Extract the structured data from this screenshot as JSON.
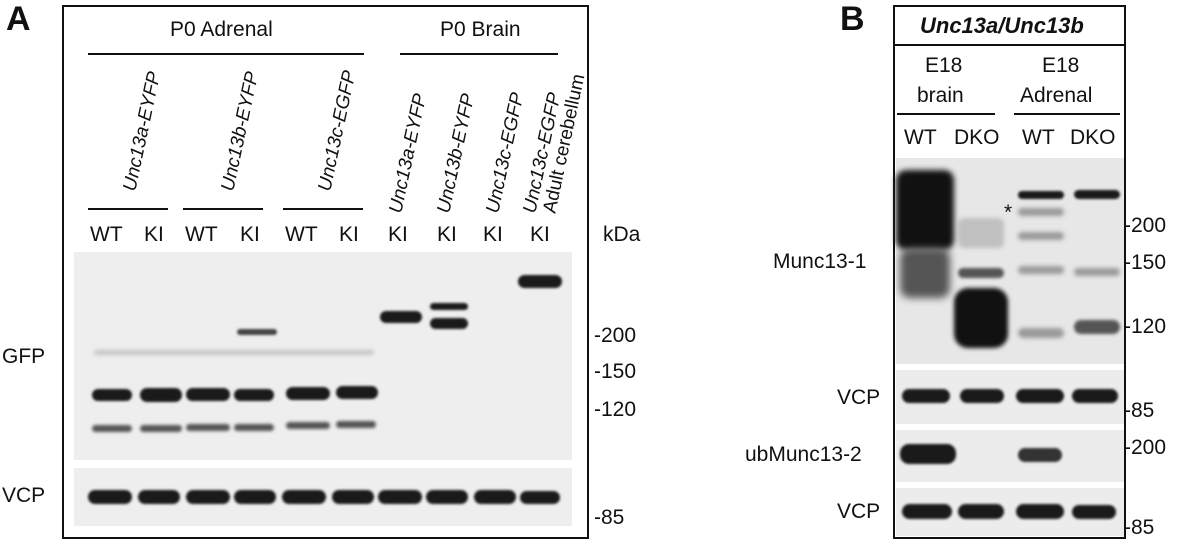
{
  "panel_a": {
    "letter": "A",
    "group_adrenal": "P0 Adrenal",
    "group_brain": "P0 Brain",
    "constructs": [
      "Unc13a-EYFP",
      "Unc13b-EYFP",
      "Unc13c-EGFP"
    ],
    "brain_lanes": [
      "Unc13a-EYFP",
      "Unc13b-EYFP",
      "Unc13c-EGFP",
      "Unc13c-EGFP"
    ],
    "brain_extra": "Adult cerebellum",
    "genotypes": [
      "WT",
      "KI",
      "WT",
      "KI",
      "WT",
      "KI",
      "KI",
      "KI",
      "KI",
      "KI"
    ],
    "kda_label": "kDa",
    "row_labels": [
      "GFP",
      "VCP"
    ],
    "markers_gfp": [
      "-200",
      "-150",
      "-120"
    ],
    "marker_vcp": "-85"
  },
  "panel_b": {
    "letter": "B",
    "title": "Unc13a/Unc13b",
    "tissue_1_line1": "E18",
    "tissue_1_line2": "brain",
    "tissue_2_line1": "E18",
    "tissue_2_line2": "Adrenal",
    "genotypes": [
      "WT",
      "DKO",
      "WT",
      "DKO"
    ],
    "asterisk": "*",
    "row_labels": [
      "Munc13-1",
      "VCP",
      "ubMunc13-2",
      "VCP"
    ],
    "markers_munc": [
      "-200",
      "-150",
      "-120"
    ],
    "marker_vcp1": "-85",
    "marker_ub": "-200",
    "marker_vcp2": "-85"
  }
}
